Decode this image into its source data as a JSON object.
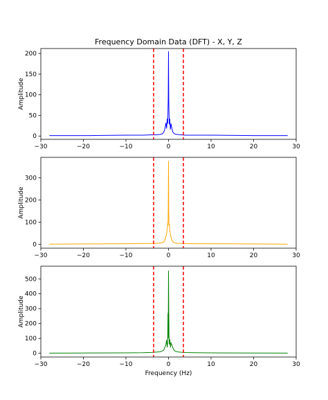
{
  "chart_data": [
    {
      "type": "line",
      "title": "Frequency Domain Data (DFT) - X, Y, Z",
      "xlabel": "",
      "ylabel": "Amplitude",
      "xlim": [
        -30,
        30
      ],
      "ylim": [
        -8,
        212
      ],
      "xticks": [
        -30,
        -20,
        -10,
        0,
        10,
        20,
        30
      ],
      "xtick_labels": [
        "−30",
        "−20",
        "−10",
        "0",
        "10",
        "20",
        "30"
      ],
      "yticks": [
        0,
        50,
        100,
        150,
        200
      ],
      "ytick_labels": [
        "0",
        "50",
        "100",
        "150",
        "200"
      ],
      "grid": false,
      "color": "#0000ff",
      "cutoff_lines": {
        "x": [
          -3.5,
          3.5
        ],
        "color": "#ff0000",
        "style": "dashed"
      },
      "series": [
        {
          "x": [
            -28,
            -20,
            -10,
            -6,
            -4,
            -3,
            -2,
            -1.5,
            -1.2,
            -1,
            -0.8,
            -0.6,
            -0.45,
            -0.3,
            -0.2,
            -0.12,
            -0.06,
            0,
            0.06,
            0.12,
            0.2,
            0.3,
            0.45,
            0.6,
            0.8,
            1,
            1.2,
            1.5,
            2,
            3,
            4,
            6,
            10,
            20,
            28
          ],
          "y": [
            1,
            1,
            2,
            2,
            3,
            3,
            4,
            5,
            8,
            12,
            20,
            32,
            18,
            42,
            30,
            60,
            95,
            205,
            90,
            55,
            28,
            42,
            16,
            30,
            18,
            10,
            7,
            5,
            4,
            3,
            2,
            2,
            2,
            1,
            1
          ]
        }
      ]
    },
    {
      "type": "line",
      "title": "",
      "xlabel": "",
      "ylabel": "Amplitude",
      "xlim": [
        -30,
        30
      ],
      "ylim": [
        -17,
        392
      ],
      "xticks": [
        -30,
        -20,
        -10,
        0,
        10,
        20,
        30
      ],
      "xtick_labels": [
        "−30",
        "−20",
        "−10",
        "0",
        "10",
        "20",
        "30"
      ],
      "yticks": [
        0,
        100,
        200,
        300
      ],
      "ytick_labels": [
        "0",
        "100",
        "200",
        "300"
      ],
      "grid": false,
      "color": "#ffa500",
      "cutoff_lines": {
        "x": [
          -3.5,
          3.5
        ],
        "color": "#ff0000",
        "style": "dashed"
      },
      "series": [
        {
          "x": [
            -28,
            -20,
            -10,
            -6,
            -4,
            -3,
            -2,
            -1.5,
            -1.2,
            -1,
            -0.8,
            -0.6,
            -0.45,
            -0.3,
            -0.2,
            -0.12,
            -0.06,
            0,
            0.06,
            0.12,
            0.2,
            0.3,
            0.45,
            0.6,
            0.8,
            1,
            1.2,
            1.5,
            2,
            3,
            4,
            6,
            10,
            20,
            28
          ],
          "y": [
            1,
            2,
            3,
            4,
            4,
            5,
            6,
            8,
            10,
            14,
            22,
            35,
            48,
            70,
            95,
            88,
            150,
            375,
            140,
            85,
            92,
            65,
            45,
            32,
            20,
            13,
            9,
            7,
            5,
            4,
            4,
            3,
            3,
            2,
            1
          ]
        }
      ]
    },
    {
      "type": "line",
      "title": "",
      "xlabel": "Frequency (Hz)",
      "ylabel": "Amplitude",
      "xlim": [
        -30,
        30
      ],
      "ylim": [
        -25,
        585
      ],
      "xticks": [
        -30,
        -20,
        -10,
        0,
        10,
        20,
        30
      ],
      "xtick_labels": [
        "−30",
        "−20",
        "−10",
        "0",
        "10",
        "20",
        "30"
      ],
      "yticks": [
        0,
        100,
        200,
        300,
        400,
        500
      ],
      "ytick_labels": [
        "0",
        "100",
        "200",
        "300",
        "400",
        "500"
      ],
      "grid": false,
      "color": "#008000",
      "cutoff_lines": {
        "x": [
          -3.5,
          3.5
        ],
        "color": "#ff0000",
        "style": "dashed"
      },
      "series": [
        {
          "x": [
            -28,
            -20,
            -10,
            -6,
            -4,
            -3,
            -2,
            -1.5,
            -1.2,
            -1,
            -0.8,
            -0.6,
            -0.45,
            -0.3,
            -0.2,
            -0.12,
            -0.06,
            0,
            0.06,
            0.12,
            0.2,
            0.3,
            0.45,
            0.6,
            0.8,
            1,
            1.2,
            1.5,
            2,
            3,
            4,
            6,
            10,
            20,
            28
          ],
          "y": [
            1,
            2,
            3,
            4,
            6,
            8,
            10,
            15,
            20,
            30,
            45,
            60,
            90,
            40,
            70,
            270,
            100,
            555,
            290,
            120,
            60,
            95,
            40,
            70,
            55,
            40,
            25,
            15,
            10,
            7,
            5,
            4,
            3,
            2,
            1
          ]
        }
      ]
    }
  ]
}
